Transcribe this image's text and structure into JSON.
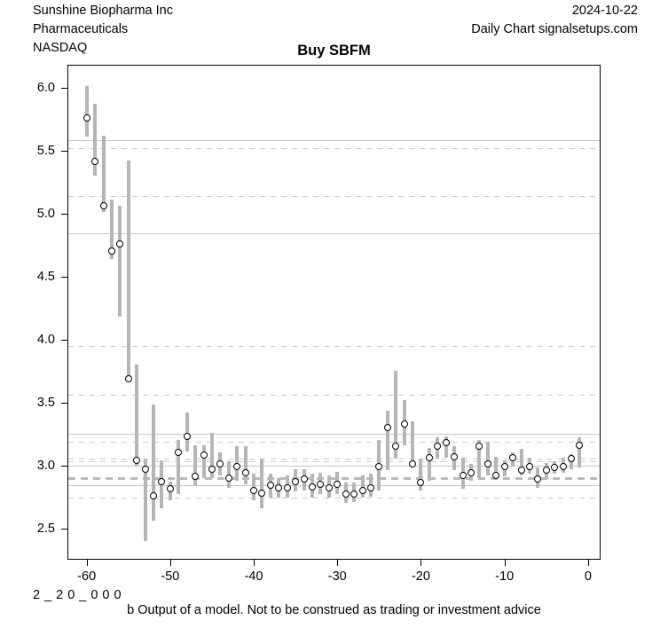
{
  "header": {
    "company": "Sunshine Biopharma Inc",
    "sector": "Pharmaceuticals",
    "exchange": "NASDAQ",
    "date": "2024-10-22",
    "source": "Daily Chart signalsetups.com"
  },
  "footer": {
    "code": "2_20_000",
    "disclaimer": "b Output of a model. Not to be construed as trading or investment advice"
  },
  "chart_data": {
    "type": "bar",
    "subtype": "high-low-close daily price bars",
    "title": "Buy SBFM",
    "xlabel": "",
    "ylabel": "",
    "xlim": [
      -62.3,
      1.5
    ],
    "ylim": [
      2.25,
      6.18
    ],
    "x_ticks": [
      -60,
      -50,
      -40,
      -30,
      -20,
      -10,
      0
    ],
    "y_ticks": [
      2.5,
      3.0,
      3.5,
      4.0,
      4.5,
      5.0,
      5.5,
      6.0
    ],
    "grid": false,
    "days": [
      -60,
      -59,
      -58,
      -57,
      -56,
      -55,
      -54,
      -53,
      -52,
      -51,
      -50,
      -49,
      -48,
      -47,
      -46,
      -45,
      -44,
      -43,
      -42,
      -41,
      -40,
      -39,
      -38,
      -37,
      -36,
      -35,
      -34,
      -33,
      -32,
      -31,
      -30,
      -29,
      -28,
      -27,
      -26,
      -25,
      -24,
      -23,
      -22,
      -21,
      -20,
      -19,
      -18,
      -17,
      -16,
      -15,
      -14,
      -13,
      -12,
      -11,
      -10,
      -9,
      -8,
      -7,
      -6,
      -5,
      -4,
      -3,
      -2,
      -1
    ],
    "high": [
      6.01,
      5.87,
      5.62,
      5.11,
      5.06,
      5.42,
      3.8,
      3.05,
      3.48,
      3.04,
      2.87,
      3.2,
      3.42,
      3.16,
      3.16,
      3.26,
      3.1,
      3.03,
      3.15,
      3.15,
      2.93,
      3.05,
      2.93,
      2.9,
      2.92,
      2.97,
      2.97,
      2.93,
      2.94,
      2.92,
      2.95,
      2.86,
      2.86,
      2.92,
      2.93,
      3.2,
      3.43,
      3.75,
      3.52,
      3.35,
      3.05,
      3.14,
      3.22,
      3.23,
      3.15,
      3.06,
      3.01,
      3.2,
      3.19,
      3.07,
      3.04,
      3.1,
      3.13,
      3.06,
      2.98,
      3.02,
      3.03,
      3.06,
      3.09,
      3.22
    ],
    "low": [
      5.61,
      5.3,
      5.01,
      4.64,
      4.18,
      3.66,
      3.0,
      2.4,
      2.56,
      2.66,
      2.72,
      2.77,
      3.11,
      2.84,
      2.9,
      2.9,
      2.92,
      2.82,
      2.88,
      2.85,
      2.72,
      2.66,
      2.74,
      2.74,
      2.74,
      2.79,
      2.8,
      2.74,
      2.77,
      2.74,
      2.77,
      2.7,
      2.71,
      2.74,
      2.75,
      2.8,
      2.96,
      3.05,
      3.16,
      3.0,
      2.8,
      2.88,
      3.05,
      3.06,
      2.96,
      2.81,
      2.88,
      2.9,
      2.92,
      2.9,
      2.91,
      2.99,
      2.92,
      2.93,
      2.82,
      2.89,
      2.93,
      2.94,
      2.97,
      2.98
    ],
    "close": [
      5.76,
      5.41,
      5.06,
      4.7,
      4.76,
      3.69,
      3.04,
      2.97,
      2.76,
      2.87,
      2.81,
      3.1,
      3.23,
      2.91,
      3.08,
      2.97,
      3.01,
      2.9,
      2.99,
      2.94,
      2.8,
      2.78,
      2.84,
      2.82,
      2.82,
      2.87,
      2.89,
      2.83,
      2.85,
      2.82,
      2.85,
      2.77,
      2.77,
      2.8,
      2.82,
      2.99,
      3.3,
      3.15,
      3.33,
      3.01,
      2.86,
      3.06,
      3.15,
      3.18,
      3.07,
      2.92,
      2.94,
      3.15,
      3.01,
      2.92,
      2.99,
      3.06,
      2.96,
      2.99,
      2.89,
      2.96,
      2.98,
      2.99,
      3.05,
      3.16
    ],
    "levels": {
      "solid": [
        5.58,
        4.84,
        3.25,
        3.0,
        2.84
      ],
      "dashed": [
        5.52,
        5.14,
        3.95,
        3.56,
        3.19,
        3.05,
        3.03,
        2.74
      ],
      "thick_dashed": [
        2.9
      ]
    },
    "colors": {
      "bar": "#b5b5b5",
      "level_solid": "#c4c4c4",
      "level_dashed": "#c9c9c9",
      "level_thick_dashed": "#b9b9b9",
      "marker_ring": "#000000",
      "marker_fill": "#ffffff",
      "axis": "#000000",
      "background": "#ffffff"
    }
  }
}
